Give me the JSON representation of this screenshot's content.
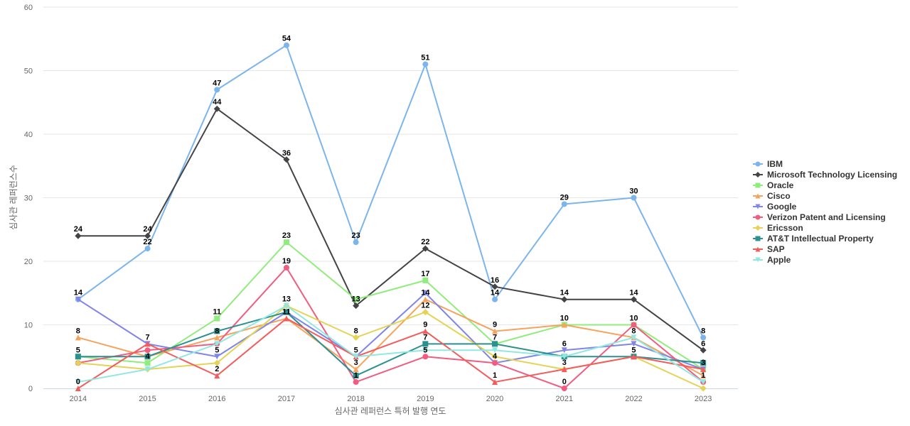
{
  "chart_data": {
    "type": "line",
    "title": "",
    "xlabel": "심사관 레퍼런스 특허 발행 연도",
    "ylabel": "심사관 레퍼런스수",
    "ylim": [
      0,
      60
    ],
    "yticks": [
      0,
      10,
      20,
      30,
      40,
      50,
      60
    ],
    "grid": true,
    "legend_position": "right",
    "categories": [
      "2014",
      "2015",
      "2016",
      "2017",
      "2018",
      "2019",
      "2020",
      "2021",
      "2022",
      "2023"
    ],
    "series": [
      {
        "name": "IBM",
        "color": "#7cb5ec",
        "marker": "circle",
        "values": [
          14,
          22,
          47,
          54,
          23,
          51,
          14,
          29,
          30,
          8
        ]
      },
      {
        "name": "Microsoft Technology Licensing",
        "color": "#434348",
        "marker": "diamond",
        "values": [
          24,
          24,
          44,
          36,
          13,
          22,
          16,
          14,
          14,
          6
        ]
      },
      {
        "name": "Oracle",
        "color": "#90ed7d",
        "marker": "square",
        "values": [
          5,
          4,
          11,
          23,
          14,
          17,
          7,
          10,
          10,
          3
        ]
      },
      {
        "name": "Cisco",
        "color": "#f7a35c",
        "marker": "triangle",
        "values": [
          8,
          5,
          8,
          11,
          3,
          14,
          9,
          10,
          8,
          2
        ]
      },
      {
        "name": "Google",
        "color": "#8085e9",
        "marker": "triangle-down",
        "values": [
          14,
          7,
          5,
          12,
          5,
          15,
          4,
          6,
          7,
          3
        ]
      },
      {
        "name": "Verizon Patent and Licensing",
        "color": "#f15c80",
        "marker": "circle",
        "values": [
          4,
          6,
          7,
          19,
          1,
          5,
          4,
          0,
          10,
          1
        ]
      },
      {
        "name": "Ericsson",
        "color": "#e4d354",
        "marker": "diamond",
        "values": [
          4,
          3,
          4,
          13,
          8,
          12,
          5,
          3,
          5,
          0
        ]
      },
      {
        "name": "AT&T Intellectual Property",
        "color": "#2b908f",
        "marker": "square",
        "values": [
          5,
          5,
          9,
          12,
          2,
          7,
          7,
          5,
          5,
          4
        ]
      },
      {
        "name": "SAP",
        "color": "#f45b5b",
        "marker": "triangle",
        "values": [
          0,
          7,
          2,
          11,
          5,
          9,
          1,
          3,
          5,
          3
        ]
      },
      {
        "name": "Apple",
        "color": "#91e8e1",
        "marker": "triangle-down",
        "values": [
          1,
          3,
          7,
          13,
          5,
          6,
          6,
          5,
          8,
          1
        ]
      }
    ],
    "data_labels": [
      {
        "x": "2014",
        "y": 24,
        "text": "24"
      },
      {
        "x": "2014",
        "y": 14,
        "text": "14"
      },
      {
        "x": "2014",
        "y": 8,
        "text": "8"
      },
      {
        "x": "2014",
        "y": 5,
        "text": "5"
      },
      {
        "x": "2014",
        "y": 0,
        "text": "0"
      },
      {
        "x": "2015",
        "y": 24,
        "text": "24"
      },
      {
        "x": "2015",
        "y": 22,
        "text": "22"
      },
      {
        "x": "2015",
        "y": 7,
        "text": "7"
      },
      {
        "x": "2015",
        "y": 4,
        "text": "4"
      },
      {
        "x": "2016",
        "y": 47,
        "text": "47"
      },
      {
        "x": "2016",
        "y": 44,
        "text": "44"
      },
      {
        "x": "2016",
        "y": 11,
        "text": "11"
      },
      {
        "x": "2016",
        "y": 8,
        "text": "8"
      },
      {
        "x": "2016",
        "y": 5,
        "text": "5"
      },
      {
        "x": "2016",
        "y": 2,
        "text": "2"
      },
      {
        "x": "2017",
        "y": 54,
        "text": "54"
      },
      {
        "x": "2017",
        "y": 36,
        "text": "36"
      },
      {
        "x": "2017",
        "y": 23,
        "text": "23"
      },
      {
        "x": "2017",
        "y": 19,
        "text": "19"
      },
      {
        "x": "2017",
        "y": 13,
        "text": "13"
      },
      {
        "x": "2017",
        "y": 11,
        "text": "11"
      },
      {
        "x": "2018",
        "y": 23,
        "text": "23"
      },
      {
        "x": "2018",
        "y": 13,
        "text": "13"
      },
      {
        "x": "2018",
        "y": 8,
        "text": "8"
      },
      {
        "x": "2018",
        "y": 5,
        "text": "5"
      },
      {
        "x": "2018",
        "y": 3,
        "text": "3"
      },
      {
        "x": "2018",
        "y": 1,
        "text": "1"
      },
      {
        "x": "2019",
        "y": 51,
        "text": "51"
      },
      {
        "x": "2019",
        "y": 22,
        "text": "22"
      },
      {
        "x": "2019",
        "y": 17,
        "text": "17"
      },
      {
        "x": "2019",
        "y": 14,
        "text": "14"
      },
      {
        "x": "2019",
        "y": 12,
        "text": "12"
      },
      {
        "x": "2019",
        "y": 9,
        "text": "9"
      },
      {
        "x": "2019",
        "y": 7,
        "text": "7"
      },
      {
        "x": "2019",
        "y": 5,
        "text": "5"
      },
      {
        "x": "2020",
        "y": 16,
        "text": "16"
      },
      {
        "x": "2020",
        "y": 14,
        "text": "14"
      },
      {
        "x": "2020",
        "y": 9,
        "text": "9"
      },
      {
        "x": "2020",
        "y": 7,
        "text": "7"
      },
      {
        "x": "2020",
        "y": 4,
        "text": "4"
      },
      {
        "x": "2020",
        "y": 1,
        "text": "1"
      },
      {
        "x": "2021",
        "y": 29,
        "text": "29"
      },
      {
        "x": "2021",
        "y": 14,
        "text": "14"
      },
      {
        "x": "2021",
        "y": 10,
        "text": "10"
      },
      {
        "x": "2021",
        "y": 6,
        "text": "6"
      },
      {
        "x": "2021",
        "y": 3,
        "text": "3"
      },
      {
        "x": "2021",
        "y": 0,
        "text": "0"
      },
      {
        "x": "2022",
        "y": 30,
        "text": "30"
      },
      {
        "x": "2022",
        "y": 14,
        "text": "14"
      },
      {
        "x": "2022",
        "y": 10,
        "text": "10"
      },
      {
        "x": "2022",
        "y": 8,
        "text": "8"
      },
      {
        "x": "2022",
        "y": 5,
        "text": "5"
      },
      {
        "x": "2023",
        "y": 8,
        "text": "8"
      },
      {
        "x": "2023",
        "y": 6,
        "text": "6"
      },
      {
        "x": "2023",
        "y": 3,
        "text": "3"
      },
      {
        "x": "2023",
        "y": 1,
        "text": "1"
      }
    ]
  }
}
